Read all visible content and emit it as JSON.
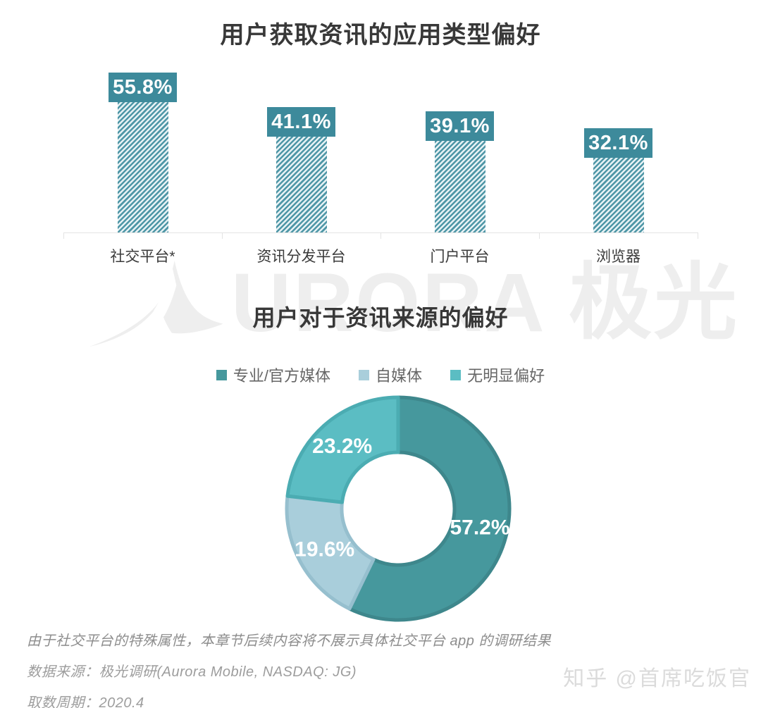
{
  "watermark_center": {
    "brand_text": "URORA 极光"
  },
  "watermark_corner": {
    "text": "知乎 @首席吃饭官"
  },
  "footer": {
    "note": "由于社交平台的特殊属性，本章节后续内容将不展示具体社交平台 app 的调研结果",
    "source": "数据来源：极光调研(Aurora Mobile, NASDAQ: JG)",
    "period": "取数周期：2020.4"
  },
  "colors": {
    "badge_teal": "#3D8A9B",
    "bar_stripe": "#4E96A6",
    "bar_stripe_bg": "#E7F2F5",
    "axis_gray": "#E3E3E3",
    "title_dark": "#383838"
  },
  "chart_data": [
    {
      "type": "bar",
      "title": "用户获取资讯的应用类型偏好",
      "categories": [
        "社交平台*",
        "资讯分发平台",
        "门户平台",
        "浏览器"
      ],
      "values": [
        55.8,
        41.1,
        39.1,
        32.1
      ],
      "labels": [
        "55.8%",
        "41.1%",
        "39.1%",
        "32.1%"
      ],
      "xlabel": "",
      "ylabel": "",
      "ylim": [
        0,
        62
      ],
      "grid": false,
      "bar_style": "diagonal-hatch",
      "value_label_style": "teal-badge-above-bar"
    },
    {
      "type": "pie",
      "subtype": "donut",
      "title": "用户对于资讯来源的偏好",
      "legend_position": "top",
      "start_angle_deg": 0,
      "direction": "clockwise",
      "segments": [
        {
          "label": "专业/官方媒体",
          "value": 57.2,
          "display": "57.2%",
          "color": "#46989D",
          "edge": "#3E878C"
        },
        {
          "label": "自媒体",
          "value": 19.6,
          "display": "19.6%",
          "color": "#A9CEDB",
          "edge": "#96BFCE"
        },
        {
          "label": "无明显偏好",
          "value": 23.2,
          "display": "23.2%",
          "color": "#5BBDC3",
          "edge": "#4BACB2"
        }
      ]
    }
  ]
}
